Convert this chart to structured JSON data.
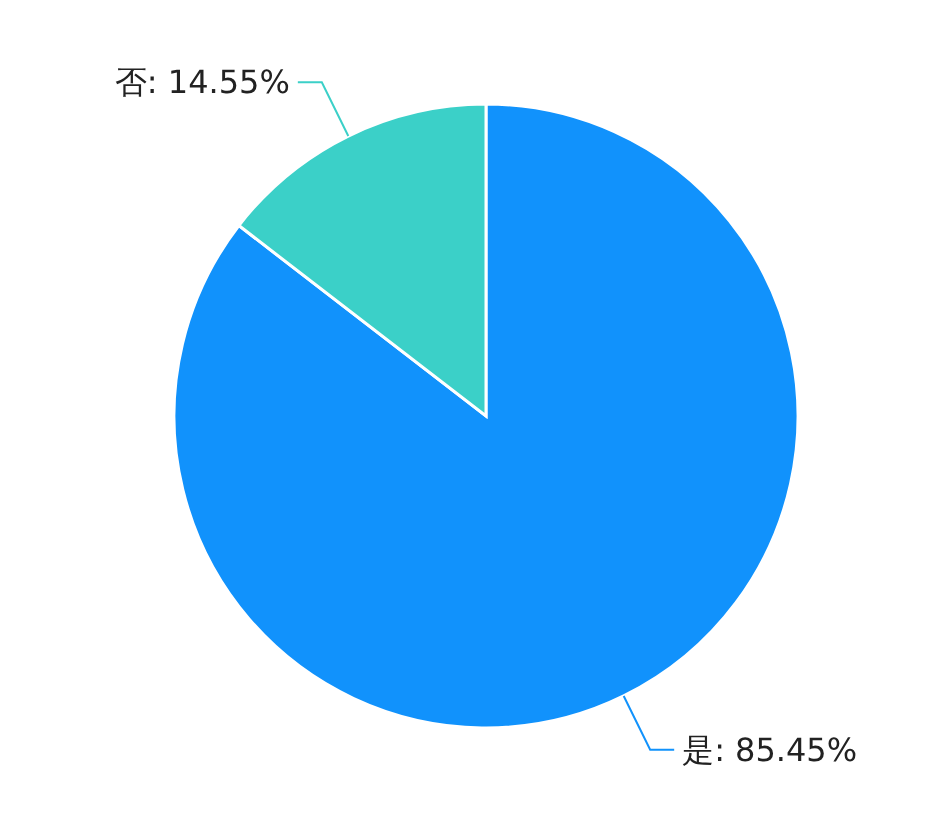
{
  "chart_data": {
    "type": "pie",
    "categories": [
      "是",
      "否"
    ],
    "values": [
      85.45,
      14.55
    ],
    "colors": [
      "#1192fc",
      "#3bd0c8"
    ],
    "value_labels": [
      "85.45%",
      "14.55%"
    ]
  }
}
